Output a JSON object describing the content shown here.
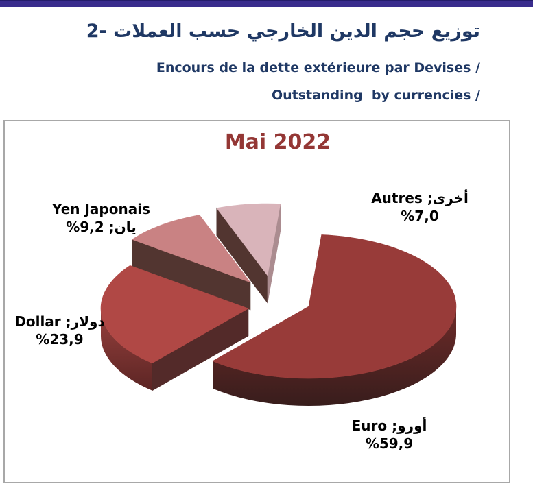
{
  "page": {
    "background": "#FFFFFF"
  },
  "header": {
    "bar_color": "#392C8D",
    "text_color": "#1F3864",
    "title_ar": "2-‎ توزيع حجم الدين الخارجي حسب العملات",
    "subtitle_fr": "Encours de la dette extérieure par Devises /",
    "subtitle_en": "Outstanding  by currencies /"
  },
  "chart_data": {
    "type": "pie",
    "style": "3d-exploded",
    "title": "Mai 2022",
    "title_color": "#943735",
    "start_angle_deg": 5,
    "direction": "clockwise",
    "legend_position": "none",
    "slices": [
      {
        "name_fr": "Euro",
        "name_ar": "أورو",
        "value_pct": 59.9,
        "label_line1": "أورو; Euro",
        "label_line2": "%59,9",
        "color_top": "#983B39",
        "color_side": "#5A2B2A",
        "rim_gradient": [
          "#6E2B29",
          "#381D1C"
        ]
      },
      {
        "name_fr": "Dollar",
        "name_ar": "دولار",
        "value_pct": 23.9,
        "label_line1": "دولار; Dollar",
        "label_line2": "%23,9",
        "color_top": "#B04845",
        "color_side": "#532A29",
        "rim_gradient": [
          "#98413E",
          "#5C2524"
        ]
      },
      {
        "name_fr": "Yen Japonais",
        "name_ar": "يان",
        "value_pct": 9.2,
        "label_line1": "Yen Japonais",
        "label_line2": "يان; 9,2%",
        "color_top": "#C98283",
        "color_side": "#523530"
      },
      {
        "name_fr": "Autres",
        "name_ar": "أخرى",
        "value_pct": 7.0,
        "label_line1": "أخرى; Autres",
        "label_line2": "%7,0",
        "color_top": "#D9B4BA",
        "color_side": "#523530",
        "color_side_end": "#AB8C90"
      }
    ]
  }
}
